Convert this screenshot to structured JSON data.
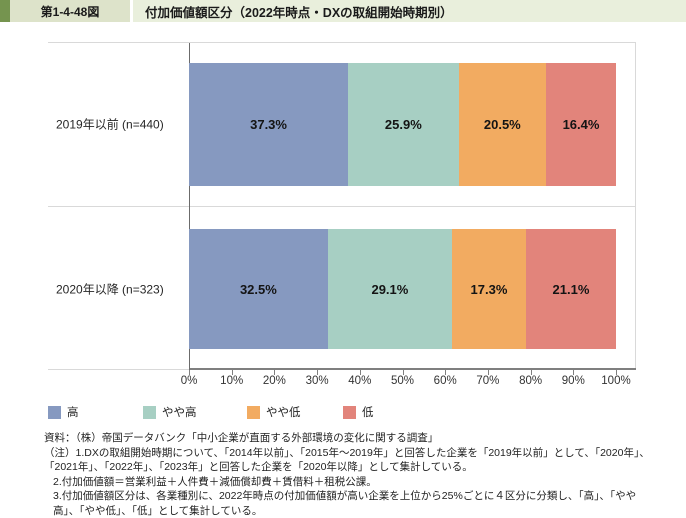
{
  "header": {
    "figure_label": "第1-4-48図",
    "title": "付加価値額区分（2022年時点・DXの取組開始時期別）",
    "accent_color": "#75944f",
    "label_bg": "#dde3ca",
    "title_bg": "#e9efdc"
  },
  "chart_data": {
    "type": "bar",
    "orientation": "horizontal",
    "stacked": true,
    "unit": "%",
    "categories": [
      "2019年以前 (n=440)",
      "2020年以降 (n=323)"
    ],
    "series": [
      {
        "name": "高",
        "color": "#8699c0",
        "values": [
          37.3,
          32.5
        ]
      },
      {
        "name": "やや高",
        "color": "#a7cfc3",
        "values": [
          25.9,
          29.1
        ]
      },
      {
        "name": "やや低",
        "color": "#f2ab61",
        "values": [
          20.5,
          17.3
        ]
      },
      {
        "name": "低",
        "color": "#e2847b",
        "values": [
          16.4,
          21.1
        ]
      }
    ],
    "x_axis": {
      "min": 0,
      "max": 100,
      "ticks": [
        "0%",
        "10%",
        "20%",
        "30%",
        "40%",
        "50%",
        "60%",
        "70%",
        "80%",
        "90%",
        "100%"
      ]
    },
    "legend_position": "bottom",
    "grid": false
  },
  "footnotes": {
    "source": "資料：（株）帝国データバンク「中小企業が直面する外部環境の変化に関する調査」",
    "note_label": "（注）",
    "notes": [
      "1.DXの取組開始時期について、「2014年以前」、「2015年～2019年」と回答した企業を「2019年以前」として、「2020年」、「2021年」、「2022年」、「2023年」と回答した企業を「2020年以降」として集計している。",
      "2.付加価値額＝営業利益＋人件費＋減価償却費＋賃借料＋租税公課。",
      "3.付加価値額区分は、各業種別に、2022年時点の付加価値額が高い企業を上位から25%ごとに４区分に分類し、「高」、「やや高」、「やや低」、「低」として集計している。"
    ]
  }
}
